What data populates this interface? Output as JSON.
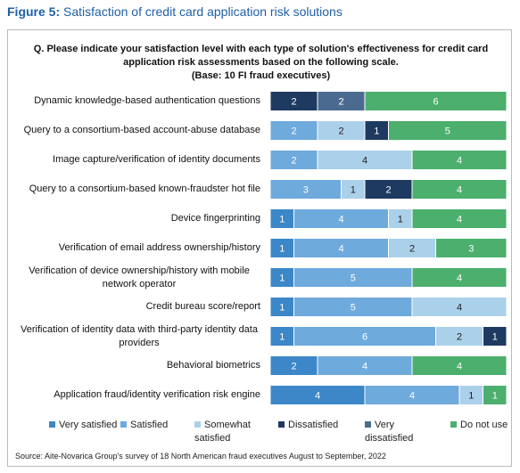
{
  "chart_data": {
    "type": "bar",
    "orientation": "horizontal",
    "stacked": true,
    "figure_label": "Figure 5:",
    "title": "Satisfaction of credit card application risk solutions",
    "subtitle": "Q. Please indicate your satisfaction level with each type of solution's effectiveness for credit card application risk assessments based on the following scale.",
    "note": "(Base: 10 FI fraud executives)",
    "source": "Source: Aite-Novarica Group's survey of 18 North American fraud executives August to September, 2022",
    "categories": [
      "Dynamic knowledge-based authentication questions",
      "Query to a consortium-based account-abuse database",
      "Image capture/verification of identity documents",
      "Query to a consortium-based known-fraudster hot file",
      "Device fingerprinting",
      "Verification of email address ownership/history",
      "Verification of device ownership/history with mobile network operator",
      "Credit bureau score/report",
      "Verification of identity data with third-party identity data providers",
      "Behavioral biometrics",
      "Application fraud/identity verification risk engine"
    ],
    "series": [
      {
        "name": "Very satisfied",
        "color": "#3b87c8",
        "values": [
          null,
          null,
          null,
          null,
          1,
          1,
          1,
          1,
          1,
          2,
          4
        ]
      },
      {
        "name": "Satisfied",
        "color": "#6eaadc",
        "values": [
          null,
          2,
          2,
          3,
          4,
          4,
          5,
          5,
          6,
          4,
          4
        ]
      },
      {
        "name": "Somewhat satisfied",
        "color": "#abd0ea",
        "values": [
          null,
          2,
          4,
          1,
          1,
          2,
          null,
          4,
          2,
          null,
          1
        ]
      },
      {
        "name": "Dissatisfied",
        "color": "#1f3a60",
        "values": [
          2,
          1,
          null,
          2,
          null,
          null,
          null,
          null,
          1,
          null,
          null
        ]
      },
      {
        "name": "Very dissatisfied",
        "color": "#4b6a8f",
        "values": [
          2,
          null,
          null,
          null,
          null,
          null,
          null,
          null,
          null,
          null,
          null
        ]
      },
      {
        "name": "Do not use",
        "color": "#4caf6e",
        "values": [
          6,
          5,
          4,
          4,
          4,
          3,
          4,
          null,
          null,
          4,
          1
        ]
      }
    ],
    "legend": "bottom"
  }
}
